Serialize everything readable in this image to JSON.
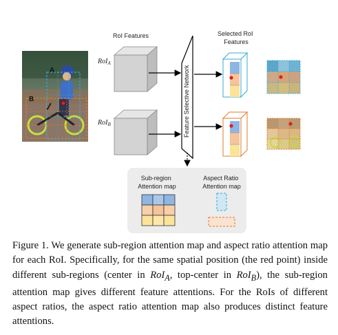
{
  "figure": {
    "roi_features_label": "RoI Features",
    "selected_label_line1": "Selected RoI",
    "selected_label_line2": "Features",
    "roi_a_label": "RoI",
    "roi_a_sub": "A",
    "roi_b_label": "RoI",
    "roi_b_sub": "B",
    "photo_label_a": "A",
    "photo_label_b": "B",
    "network_label": "Feature Selective Network",
    "subregion_line1": "Sub-region",
    "subregion_line2": "Attention map",
    "aspect_line1": "Aspect Ratio",
    "aspect_line2": "Attention map",
    "colors": {
      "roi_a": "#35a8d6",
      "roi_b": "#e2792a",
      "blue_cell": "#8fb5e3",
      "orange_cell": "#f5c49a",
      "yellow_cell": "#fbe39a",
      "panel_bg": "#ececec",
      "cube": "#d3d3d3"
    }
  },
  "caption": {
    "p1": "Figure 1. We generate sub-region attention map and aspect ratio attention map for each RoI. Specifically, for the same spatial position (the red point) inside different sub-regions (center in ",
    "m1": "RoI",
    "m1_sub": "A",
    "p2": ", top-center in ",
    "m2": "RoI",
    "m2_sub": "B",
    "p3": "), the sub-region attention map gives different feature attentions. For the RoIs of different aspect ratios, the aspect ratio attention map also produces distinct feature attentions."
  }
}
